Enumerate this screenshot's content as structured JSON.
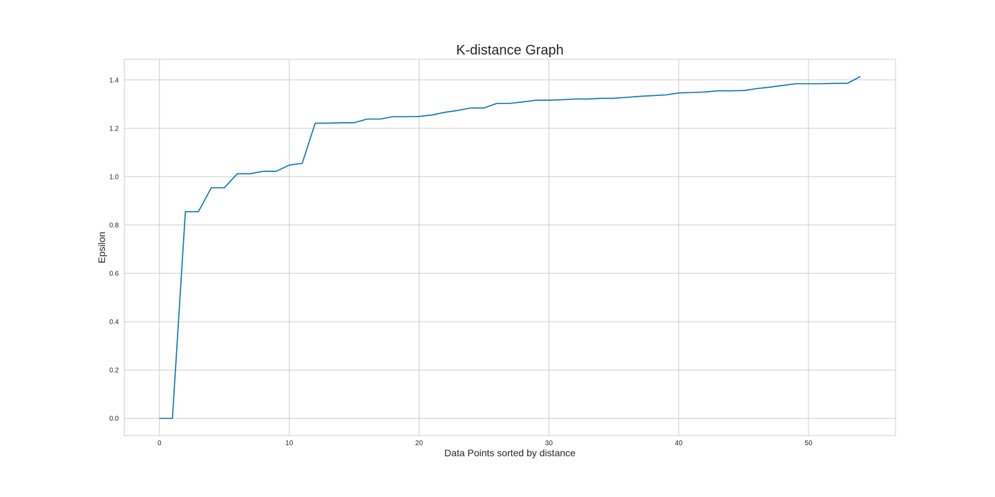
{
  "chart_data": {
    "type": "line",
    "title": "K-distance Graph",
    "xlabel": "Data Points sorted by distance",
    "ylabel": "Epsilon",
    "xlim": [
      -2.7,
      56.7
    ],
    "ylim": [
      -0.071,
      1.485
    ],
    "xticks": [
      0,
      10,
      20,
      30,
      40,
      50
    ],
    "yticks": [
      0.0,
      0.2,
      0.4,
      0.6,
      0.8,
      1.0,
      1.2,
      1.4
    ],
    "ytick_labels": [
      "0.0",
      "0.2",
      "0.4",
      "0.6",
      "0.8",
      "1.0",
      "1.2",
      "1.4"
    ],
    "grid": true,
    "line_color": "#0072b2",
    "grid_color": "#cccccc",
    "series": [
      {
        "x": [
          0,
          1,
          2,
          3,
          4,
          5,
          6,
          7,
          8,
          9,
          10,
          11,
          12,
          13,
          14,
          15,
          16,
          17,
          18,
          19,
          20,
          21,
          22,
          23,
          24,
          25,
          26,
          27,
          28,
          29,
          30,
          31,
          32,
          33,
          34,
          35,
          36,
          37,
          38,
          39,
          40,
          41,
          42,
          43,
          44,
          45,
          46,
          47,
          48,
          49,
          50,
          51,
          52,
          53,
          54
        ],
        "values": [
          0.0,
          0.0,
          0.855,
          0.855,
          0.954,
          0.954,
          1.012,
          1.012,
          1.022,
          1.022,
          1.048,
          1.055,
          1.221,
          1.221,
          1.223,
          1.223,
          1.238,
          1.238,
          1.248,
          1.248,
          1.249,
          1.255,
          1.266,
          1.274,
          1.284,
          1.284,
          1.303,
          1.303,
          1.309,
          1.316,
          1.316,
          1.318,
          1.321,
          1.321,
          1.324,
          1.324,
          1.328,
          1.332,
          1.335,
          1.338,
          1.346,
          1.348,
          1.35,
          1.355,
          1.355,
          1.356,
          1.364,
          1.37,
          1.377,
          1.384,
          1.384,
          1.384,
          1.386,
          1.386,
          1.414
        ]
      }
    ]
  }
}
